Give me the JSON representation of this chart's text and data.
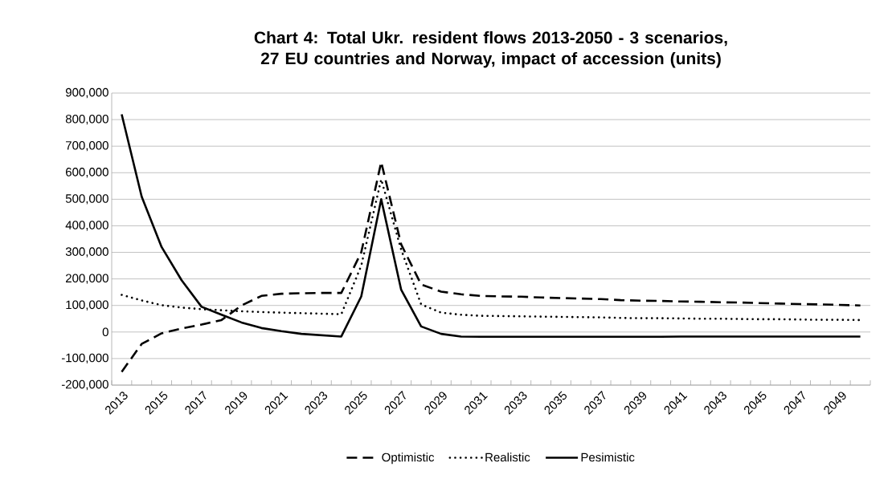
{
  "chart_data": {
    "type": "line",
    "title": "Chart 4: Total Ukr. resident flows 2013-2050 - 3 scenarios, 27 EU countries and Norway, impact of accession (units)",
    "categories": [
      "2013",
      null,
      "2015",
      null,
      "2017",
      null,
      "2019",
      null,
      "2021",
      null,
      "2023",
      null,
      "2025",
      null,
      "2027",
      null,
      "2029",
      null,
      "2031",
      null,
      "2033",
      null,
      "2035",
      null,
      "2037",
      null,
      "2039",
      null,
      "2041",
      null,
      "2043",
      null,
      "2045",
      null,
      "2047",
      null,
      "2049",
      null
    ],
    "series": [
      {
        "name": "Optimistic",
        "color": "#000000",
        "line_style": "dashed",
        "values": [
          -150000,
          -45000,
          -5000,
          13000,
          28000,
          45000,
          100000,
          136000,
          144000,
          146000,
          147000,
          147000,
          300000,
          640000,
          330000,
          179000,
          152000,
          142000,
          136000,
          134000,
          133000,
          130000,
          128000,
          126000,
          124000,
          120000,
          118000,
          117000,
          115000,
          114000,
          112000,
          111000,
          109000,
          107000,
          105000,
          104000,
          102000,
          100000
        ]
      },
      {
        "name": "Realistic",
        "color": "#000000",
        "line_style": "dotted",
        "values": [
          140000,
          119000,
          101000,
          92000,
          86000,
          82000,
          78000,
          75000,
          73000,
          71000,
          69000,
          67000,
          250000,
          575000,
          310000,
          104000,
          73000,
          65000,
          61000,
          60000,
          59000,
          58000,
          57000,
          56000,
          55000,
          53000,
          52000,
          52000,
          51000,
          50000,
          50000,
          49000,
          48000,
          48000,
          47000,
          46000,
          46000,
          45000
        ]
      },
      {
        "name": "Pesimistic",
        "color": "#000000",
        "line_style": "solid",
        "values": [
          820000,
          510000,
          320000,
          195000,
          95000,
          65000,
          36000,
          15000,
          3000,
          -7000,
          -12000,
          -17000,
          134000,
          500000,
          159000,
          21000,
          -7000,
          -17000,
          -18000,
          -18000,
          -18000,
          -18000,
          -18000,
          -18000,
          -18000,
          -18000,
          -18000,
          -18000,
          -17000,
          -17000,
          -17000,
          -17000,
          -17000,
          -17000,
          -17000,
          -17000,
          -17000,
          -17000
        ]
      }
    ],
    "ylim": [
      -200000,
      900000
    ],
    "yticks": [
      {
        "value": -200000,
        "label": "-200,000"
      },
      {
        "value": -100000,
        "label": "-100,000"
      },
      {
        "value": 0,
        "label": "0"
      },
      {
        "value": 100000,
        "label": "100,000"
      },
      {
        "value": 200000,
        "label": "200,000"
      },
      {
        "value": 300000,
        "label": "300,000"
      },
      {
        "value": 400000,
        "label": "400,000"
      },
      {
        "value": 500000,
        "label": "500,000"
      },
      {
        "value": 600000,
        "label": "600,000"
      },
      {
        "value": 700000,
        "label": "700,000"
      },
      {
        "value": 800000,
        "label": "800,000"
      },
      {
        "value": 900000,
        "label": "900,000"
      }
    ],
    "grid": "y",
    "legend": "bottom"
  }
}
